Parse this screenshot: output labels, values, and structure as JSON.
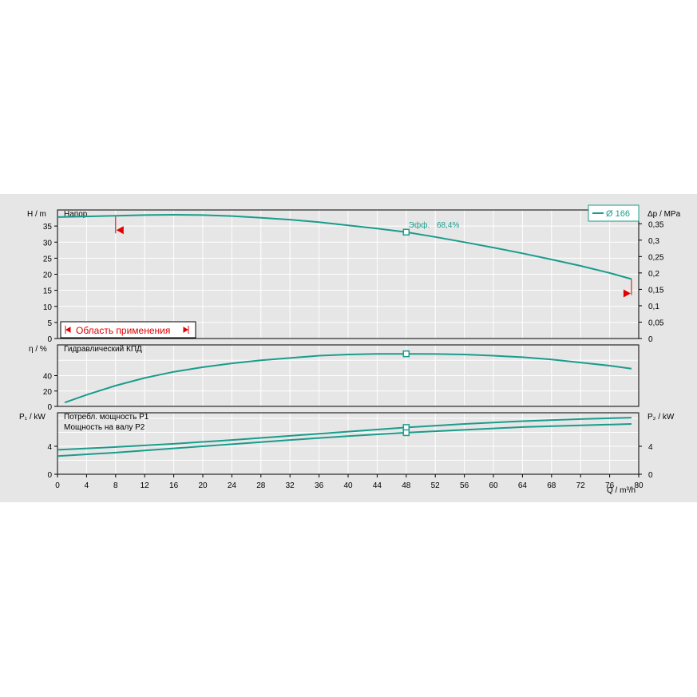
{
  "chart_data": {
    "type": "line",
    "x": {
      "label": "Q / m³/h",
      "range": [
        0,
        80
      ],
      "ticks": [
        0,
        4,
        8,
        12,
        16,
        20,
        24,
        28,
        32,
        36,
        40,
        44,
        48,
        52,
        56,
        60,
        64,
        68,
        72,
        76,
        80
      ]
    },
    "colors": {
      "curve": "#1a9c8c",
      "range_marker": "#e00000",
      "background": "#e6e6e6",
      "grid": "#ffffff"
    },
    "legend": {
      "label": "Ø 166",
      "placement": "top-right"
    },
    "head_chart": {
      "title": "Напор",
      "ylabel_left": "H / m",
      "ylabel_right": "Δp / MPa",
      "ylim": [
        0,
        40
      ],
      "left_ticks": [
        "0",
        "5",
        "10",
        "15",
        "20",
        "25",
        "30",
        "35"
      ],
      "left_tick_values": [
        0,
        5,
        10,
        15,
        20,
        25,
        30,
        35
      ],
      "right_ticks": [
        "0",
        "0,05",
        "0,1",
        "0,15",
        "0,2",
        "0,25",
        "0,3",
        "0,35"
      ],
      "right_tick_values": [
        0,
        0.05,
        0.1,
        0.15,
        0.2,
        0.25,
        0.3,
        0.35
      ],
      "series": [
        {
          "x": [
            0,
            4,
            8,
            12,
            16,
            20,
            24,
            28,
            32,
            36,
            40,
            44,
            48,
            52,
            56,
            60,
            64,
            68,
            72,
            76,
            79
          ],
          "y": [
            37.8,
            38.0,
            38.2,
            38.4,
            38.5,
            38.4,
            38.1,
            37.6,
            37.0,
            36.2,
            35.2,
            34.2,
            33.1,
            31.6,
            30.0,
            28.3,
            26.5,
            24.6,
            22.6,
            20.4,
            18.5
          ]
        }
      ],
      "efficiency_point": {
        "x": 48,
        "y": 33.1,
        "label": "Эфф.",
        "value": "68,4%"
      },
      "application_range": {
        "label": "Область применения",
        "q_min": 8,
        "q_max": 79
      }
    },
    "efficiency_chart": {
      "title": "Гидравлический КПД",
      "ylabel": "η / %",
      "ylim": [
        0,
        80
      ],
      "ticks": [
        "0",
        "20",
        "40"
      ],
      "tick_values": [
        0,
        20,
        40
      ],
      "series": [
        {
          "x": [
            1,
            4,
            8,
            12,
            16,
            20,
            24,
            28,
            32,
            36,
            40,
            44,
            48,
            52,
            56,
            60,
            64,
            68,
            72,
            76,
            79
          ],
          "y": [
            5,
            15,
            27,
            37,
            45,
            51,
            56,
            60,
            63,
            66,
            67.5,
            68.3,
            68.4,
            68.2,
            67.5,
            66,
            64,
            61,
            57,
            53,
            49
          ]
        }
      ],
      "marker": {
        "x": 48,
        "y": 68.4
      }
    },
    "power_chart": {
      "title_p1": "Потребл. мощность P1",
      "title_p2": "Мощность на валу P2",
      "ylabel_left": "P₁ / kW",
      "ylabel_right": "P₂ / kW",
      "ylim": [
        0,
        8.8
      ],
      "left_ticks": [
        "0",
        "4"
      ],
      "right_ticks": [
        "0",
        "4"
      ],
      "tick_values": [
        0,
        4
      ],
      "series": [
        {
          "name": "P1",
          "x": [
            0,
            8,
            16,
            24,
            32,
            40,
            48,
            56,
            64,
            72,
            79
          ],
          "y": [
            3.5,
            3.9,
            4.35,
            4.9,
            5.5,
            6.1,
            6.7,
            7.2,
            7.6,
            7.9,
            8.1
          ]
        },
        {
          "name": "P2",
          "x": [
            0,
            8,
            16,
            24,
            32,
            40,
            48,
            56,
            64,
            72,
            79
          ],
          "y": [
            2.6,
            3.1,
            3.7,
            4.3,
            4.9,
            5.45,
            5.95,
            6.35,
            6.75,
            7.0,
            7.2
          ]
        }
      ],
      "markers": [
        {
          "x": 48,
          "y": 6.7
        },
        {
          "x": 48,
          "y": 5.95
        }
      ]
    }
  }
}
